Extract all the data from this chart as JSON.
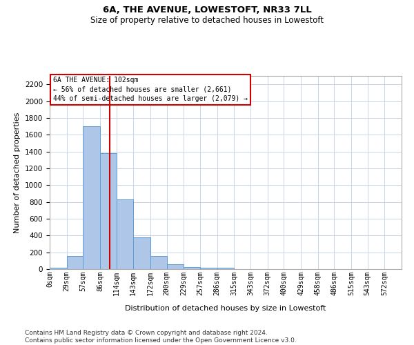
{
  "title": "6A, THE AVENUE, LOWESTOFT, NR33 7LL",
  "subtitle": "Size of property relative to detached houses in Lowestoft",
  "xlabel": "Distribution of detached houses by size in Lowestoft",
  "ylabel": "Number of detached properties",
  "bar_color": "#aec6e8",
  "bar_edge_color": "#5b9bd5",
  "background_color": "#ffffff",
  "grid_color": "#c8d4e8",
  "annotation_text": "6A THE AVENUE: 102sqm\n← 56% of detached houses are smaller (2,661)\n44% of semi-detached houses are larger (2,079) →",
  "annotation_box_color": "#ffffff",
  "annotation_box_edge_color": "#cc0000",
  "property_line_x": 102,
  "property_line_color": "#cc0000",
  "categories": [
    "0sqm",
    "29sqm",
    "57sqm",
    "86sqm",
    "114sqm",
    "143sqm",
    "172sqm",
    "200sqm",
    "229sqm",
    "257sqm",
    "286sqm",
    "315sqm",
    "343sqm",
    "372sqm",
    "400sqm",
    "429sqm",
    "458sqm",
    "486sqm",
    "515sqm",
    "543sqm",
    "572sqm"
  ],
  "bin_edges": [
    0,
    29,
    57,
    86,
    114,
    143,
    172,
    200,
    229,
    257,
    286,
    315,
    343,
    372,
    400,
    429,
    458,
    486,
    515,
    543,
    572,
    601
  ],
  "values": [
    20,
    155,
    1700,
    1380,
    830,
    375,
    160,
    60,
    25,
    20,
    20,
    0,
    0,
    0,
    0,
    0,
    0,
    0,
    0,
    0,
    0
  ],
  "ylim": [
    0,
    2300
  ],
  "yticks": [
    0,
    200,
    400,
    600,
    800,
    1000,
    1200,
    1400,
    1600,
    1800,
    2000,
    2200
  ],
  "footer_text": "Contains HM Land Registry data © Crown copyright and database right 2024.\nContains public sector information licensed under the Open Government Licence v3.0.",
  "footnote_fontsize": 6.5,
  "title_fontsize": 9.5,
  "subtitle_fontsize": 8.5,
  "xlabel_fontsize": 8,
  "ylabel_fontsize": 8
}
